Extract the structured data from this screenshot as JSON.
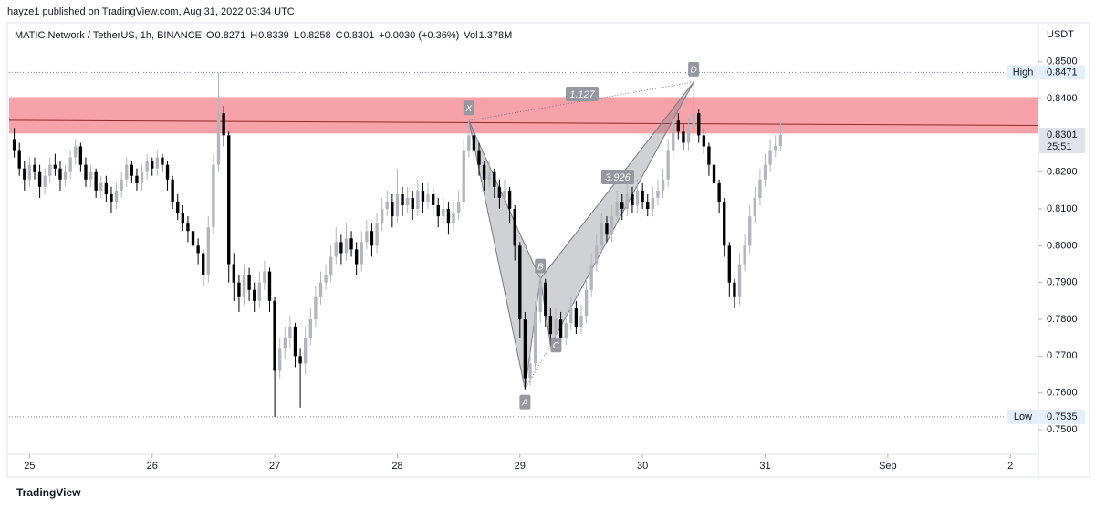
{
  "header": {
    "publisher": "hayze1 published on TradingView.com, Aug 31, 2022 03:34 UTC"
  },
  "footer": {
    "brand": "TradingView"
  },
  "chart_data": {
    "type": "candlestick",
    "legend": {
      "symbol": "MATIC Network / TetherUS, 1h, BINANCE",
      "fields": [
        {
          "key": "O",
          "value": 0.8271
        },
        {
          "key": "H",
          "value": 0.8339
        },
        {
          "key": "L",
          "value": 0.8258
        },
        {
          "key": "C",
          "value": 0.8301
        }
      ],
      "change": "+0.0030 (+0.36%)",
      "vol_key": "Vol",
      "vol": "1.378M"
    },
    "currency": "USDT",
    "up_color": "#b2b5be",
    "down_color": "#000000",
    "ylim": [
      0.7433,
      0.8606
    ],
    "yticks": [
      {
        "value": 0.75,
        "label": "0.7500"
      },
      {
        "value": 0.76,
        "label": "0.7600"
      },
      {
        "value": 0.77,
        "label": "0.7700"
      },
      {
        "value": 0.78,
        "label": "0.7800"
      },
      {
        "value": 0.79,
        "label": "0.7900"
      },
      {
        "value": 0.8,
        "label": "0.8000"
      },
      {
        "value": 0.81,
        "label": "0.8100"
      },
      {
        "value": 0.82,
        "label": "0.8200"
      },
      {
        "value": 0.84,
        "label": "0.8400"
      },
      {
        "value": 0.85,
        "label": "0.8500"
      }
    ],
    "xlim": [
      -1,
      200.5
    ],
    "xticks": [
      {
        "value": 3,
        "label": "25"
      },
      {
        "value": 27,
        "label": "26"
      },
      {
        "value": 51,
        "label": "27"
      },
      {
        "value": 75,
        "label": "28"
      },
      {
        "value": 99,
        "label": "29"
      },
      {
        "value": 123,
        "label": "30"
      },
      {
        "value": 147,
        "label": "31"
      },
      {
        "value": 171,
        "label": "Sep"
      },
      {
        "value": 195,
        "label": "2"
      }
    ],
    "high": {
      "name": "High",
      "value": 0.8471
    },
    "low": {
      "name": "Low",
      "value": 0.7535
    },
    "last": {
      "value": 0.8301,
      "countdown": "25:51"
    },
    "zone": [
      0.8305,
      0.8404
    ],
    "trendline": [
      0.8341,
      0.8327
    ],
    "pattern": [
      {
        "label": "X",
        "x": 89,
        "y": 0.834
      },
      {
        "label": "A",
        "x": 100,
        "y": 0.761
      },
      {
        "label": "B",
        "x": 103,
        "y": 0.791
      },
      {
        "label": "C",
        "x": 105,
        "y": 0.773
      },
      {
        "label": "D",
        "x": 133,
        "y": 0.8445
      }
    ],
    "ratios": [
      "1.127",
      "3.926"
    ],
    "ohlc": [
      [
        0.829,
        0.832,
        0.824,
        0.826
      ],
      [
        0.826,
        0.828,
        0.819,
        0.821
      ],
      [
        0.821,
        0.823,
        0.815,
        0.818
      ],
      [
        0.818,
        0.824,
        0.816,
        0.822
      ],
      [
        0.822,
        0.824,
        0.818,
        0.82
      ],
      [
        0.82,
        0.822,
        0.813,
        0.816
      ],
      [
        0.816,
        0.821,
        0.814,
        0.819
      ],
      [
        0.819,
        0.824,
        0.817,
        0.822
      ],
      [
        0.822,
        0.825,
        0.819,
        0.821
      ],
      [
        0.821,
        0.823,
        0.815,
        0.818
      ],
      [
        0.818,
        0.822,
        0.816,
        0.82
      ],
      [
        0.82,
        0.826,
        0.818,
        0.824
      ],
      [
        0.824,
        0.829,
        0.822,
        0.827
      ],
      [
        0.827,
        0.828,
        0.82,
        0.822
      ],
      [
        0.822,
        0.824,
        0.816,
        0.818
      ],
      [
        0.818,
        0.822,
        0.816,
        0.82
      ],
      [
        0.82,
        0.821,
        0.813,
        0.815
      ],
      [
        0.815,
        0.819,
        0.813,
        0.817
      ],
      [
        0.817,
        0.819,
        0.812,
        0.814
      ],
      [
        0.814,
        0.816,
        0.809,
        0.812
      ],
      [
        0.812,
        0.817,
        0.81,
        0.815
      ],
      [
        0.815,
        0.82,
        0.813,
        0.818
      ],
      [
        0.818,
        0.824,
        0.816,
        0.822
      ],
      [
        0.822,
        0.823,
        0.817,
        0.819
      ],
      [
        0.819,
        0.821,
        0.815,
        0.817
      ],
      [
        0.817,
        0.822,
        0.815,
        0.82
      ],
      [
        0.82,
        0.825,
        0.818,
        0.823
      ],
      [
        0.823,
        0.824,
        0.819,
        0.821
      ],
      [
        0.821,
        0.826,
        0.819,
        0.824
      ],
      [
        0.824,
        0.825,
        0.82,
        0.822
      ],
      [
        0.822,
        0.823,
        0.815,
        0.818
      ],
      [
        0.818,
        0.819,
        0.81,
        0.812
      ],
      [
        0.812,
        0.814,
        0.807,
        0.809
      ],
      [
        0.809,
        0.811,
        0.804,
        0.806
      ],
      [
        0.806,
        0.808,
        0.801,
        0.804
      ],
      [
        0.804,
        0.805,
        0.797,
        0.8
      ],
      [
        0.8,
        0.802,
        0.795,
        0.798
      ],
      [
        0.798,
        0.799,
        0.789,
        0.792
      ],
      [
        0.792,
        0.808,
        0.79,
        0.805
      ],
      [
        0.805,
        0.825,
        0.803,
        0.822
      ],
      [
        0.822,
        0.847,
        0.82,
        0.836
      ],
      [
        0.836,
        0.838,
        0.827,
        0.83
      ],
      [
        0.83,
        0.831,
        0.79,
        0.795
      ],
      [
        0.795,
        0.798,
        0.785,
        0.79
      ],
      [
        0.79,
        0.792,
        0.782,
        0.786
      ],
      [
        0.786,
        0.795,
        0.784,
        0.792
      ],
      [
        0.792,
        0.794,
        0.785,
        0.788
      ],
      [
        0.788,
        0.79,
        0.782,
        0.785
      ],
      [
        0.785,
        0.793,
        0.783,
        0.79
      ],
      [
        0.79,
        0.796,
        0.788,
        0.793
      ],
      [
        0.793,
        0.794,
        0.782,
        0.785
      ],
      [
        0.785,
        0.786,
        0.7535,
        0.766
      ],
      [
        0.766,
        0.775,
        0.764,
        0.772
      ],
      [
        0.772,
        0.778,
        0.769,
        0.775
      ],
      [
        0.775,
        0.781,
        0.772,
        0.778
      ],
      [
        0.778,
        0.779,
        0.767,
        0.77
      ],
      [
        0.77,
        0.772,
        0.756,
        0.768
      ],
      [
        0.768,
        0.778,
        0.765,
        0.775
      ],
      [
        0.775,
        0.783,
        0.773,
        0.78
      ],
      [
        0.78,
        0.789,
        0.778,
        0.786
      ],
      [
        0.786,
        0.793,
        0.784,
        0.79
      ],
      [
        0.79,
        0.795,
        0.788,
        0.792
      ],
      [
        0.792,
        0.8,
        0.79,
        0.797
      ],
      [
        0.797,
        0.805,
        0.795,
        0.801
      ],
      [
        0.801,
        0.803,
        0.795,
        0.798
      ],
      [
        0.798,
        0.806,
        0.796,
        0.802
      ],
      [
        0.802,
        0.804,
        0.797,
        0.799
      ],
      [
        0.799,
        0.801,
        0.792,
        0.795
      ],
      [
        0.795,
        0.804,
        0.793,
        0.801
      ],
      [
        0.801,
        0.807,
        0.799,
        0.804
      ],
      [
        0.804,
        0.806,
        0.797,
        0.8
      ],
      [
        0.8,
        0.809,
        0.798,
        0.806
      ],
      [
        0.806,
        0.813,
        0.804,
        0.81
      ],
      [
        0.81,
        0.815,
        0.808,
        0.812
      ],
      [
        0.812,
        0.814,
        0.805,
        0.808
      ],
      [
        0.808,
        0.821,
        0.806,
        0.814
      ],
      [
        0.814,
        0.816,
        0.808,
        0.811
      ],
      [
        0.811,
        0.816,
        0.809,
        0.813
      ],
      [
        0.813,
        0.815,
        0.807,
        0.81
      ],
      [
        0.81,
        0.818,
        0.808,
        0.815
      ],
      [
        0.815,
        0.817,
        0.809,
        0.812
      ],
      [
        0.812,
        0.817,
        0.81,
        0.814
      ],
      [
        0.814,
        0.816,
        0.808,
        0.811
      ],
      [
        0.811,
        0.813,
        0.805,
        0.808
      ],
      [
        0.808,
        0.813,
        0.806,
        0.81
      ],
      [
        0.81,
        0.812,
        0.803,
        0.806
      ],
      [
        0.806,
        0.812,
        0.804,
        0.809
      ],
      [
        0.809,
        0.815,
        0.807,
        0.812
      ],
      [
        0.812,
        0.829,
        0.81,
        0.826
      ],
      [
        0.826,
        0.834,
        0.824,
        0.83
      ],
      [
        0.83,
        0.832,
        0.823,
        0.826
      ],
      [
        0.826,
        0.828,
        0.819,
        0.822
      ],
      [
        0.822,
        0.823,
        0.815,
        0.818
      ],
      [
        0.818,
        0.823,
        0.816,
        0.82
      ],
      [
        0.82,
        0.821,
        0.813,
        0.816
      ],
      [
        0.816,
        0.818,
        0.81,
        0.813
      ],
      [
        0.813,
        0.818,
        0.811,
        0.815
      ],
      [
        0.815,
        0.816,
        0.806,
        0.81
      ],
      [
        0.81,
        0.811,
        0.796,
        0.8
      ],
      [
        0.8,
        0.801,
        0.775,
        0.78
      ],
      [
        0.78,
        0.782,
        0.761,
        0.764
      ],
      [
        0.764,
        0.771,
        0.762,
        0.768
      ],
      [
        0.768,
        0.785,
        0.766,
        0.782
      ],
      [
        0.782,
        0.793,
        0.779,
        0.79
      ],
      [
        0.79,
        0.791,
        0.778,
        0.781
      ],
      [
        0.781,
        0.783,
        0.773,
        0.776
      ],
      [
        0.776,
        0.783,
        0.774,
        0.78
      ],
      [
        0.78,
        0.782,
        0.773,
        0.775
      ],
      [
        0.775,
        0.782,
        0.773,
        0.779
      ],
      [
        0.779,
        0.786,
        0.777,
        0.783
      ],
      [
        0.783,
        0.785,
        0.776,
        0.778
      ],
      [
        0.778,
        0.784,
        0.776,
        0.781
      ],
      [
        0.781,
        0.791,
        0.779,
        0.788
      ],
      [
        0.788,
        0.798,
        0.786,
        0.795
      ],
      [
        0.795,
        0.803,
        0.793,
        0.8
      ],
      [
        0.8,
        0.809,
        0.798,
        0.806
      ],
      [
        0.806,
        0.808,
        0.801,
        0.803
      ],
      [
        0.803,
        0.811,
        0.801,
        0.808
      ],
      [
        0.808,
        0.815,
        0.806,
        0.812
      ],
      [
        0.812,
        0.814,
        0.807,
        0.81
      ],
      [
        0.81,
        0.817,
        0.808,
        0.814
      ],
      [
        0.814,
        0.816,
        0.809,
        0.811
      ],
      [
        0.811,
        0.818,
        0.809,
        0.815
      ],
      [
        0.815,
        0.817,
        0.81,
        0.812
      ],
      [
        0.812,
        0.814,
        0.808,
        0.81
      ],
      [
        0.81,
        0.816,
        0.808,
        0.813
      ],
      [
        0.813,
        0.818,
        0.811,
        0.815
      ],
      [
        0.815,
        0.821,
        0.813,
        0.818
      ],
      [
        0.818,
        0.829,
        0.816,
        0.826
      ],
      [
        0.826,
        0.837,
        0.824,
        0.834
      ],
      [
        0.834,
        0.836,
        0.829,
        0.831
      ],
      [
        0.831,
        0.833,
        0.826,
        0.828
      ],
      [
        0.828,
        0.835,
        0.826,
        0.832
      ],
      [
        0.832,
        0.8445,
        0.83,
        0.836
      ],
      [
        0.836,
        0.837,
        0.828,
        0.83
      ],
      [
        0.83,
        0.832,
        0.825,
        0.827
      ],
      [
        0.827,
        0.828,
        0.819,
        0.822
      ],
      [
        0.822,
        0.823,
        0.814,
        0.817
      ],
      [
        0.817,
        0.818,
        0.809,
        0.812
      ],
      [
        0.812,
        0.813,
        0.797,
        0.8
      ],
      [
        0.8,
        0.801,
        0.786,
        0.79
      ],
      [
        0.79,
        0.791,
        0.783,
        0.786
      ],
      [
        0.786,
        0.798,
        0.784,
        0.795
      ],
      [
        0.795,
        0.803,
        0.793,
        0.8
      ],
      [
        0.8,
        0.811,
        0.798,
        0.808
      ],
      [
        0.808,
        0.816,
        0.806,
        0.813
      ],
      [
        0.813,
        0.821,
        0.811,
        0.818
      ],
      [
        0.818,
        0.825,
        0.816,
        0.822
      ],
      [
        0.822,
        0.829,
        0.82,
        0.826
      ],
      [
        0.826,
        0.83,
        0.824,
        0.8271
      ],
      [
        0.8271,
        0.8339,
        0.8258,
        0.8301
      ]
    ]
  }
}
